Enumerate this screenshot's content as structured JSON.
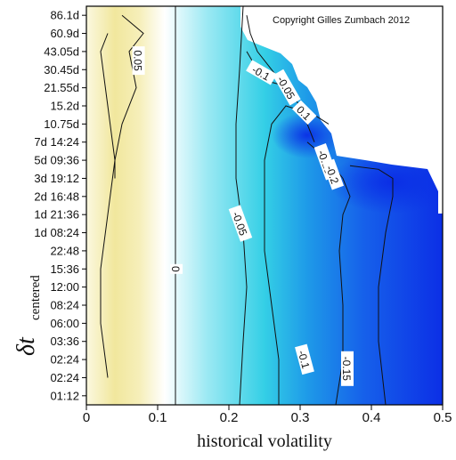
{
  "chart_data": {
    "type": "heatmap",
    "title": "",
    "copyright": "Copyright Gilles Zumbach 2012",
    "xlabel": "historical volatility",
    "ylabel_main": "δt",
    "ylabel_sub": "centered",
    "xlim": [
      0,
      0.5
    ],
    "x_ticks": [
      "0",
      "0.1",
      "0.2",
      "0.3",
      "0.4",
      "0.5"
    ],
    "y_ticks": [
      "86.1d",
      "60.9d",
      "43.05d",
      "30.45d",
      "21.55d",
      "15.2d",
      "10.75d",
      "7d 14:24",
      "5d 09:36",
      "3d 19:12",
      "2d 16:48",
      "1d 21:36",
      "1d 08:24",
      "22:48",
      "15:36",
      "12:00",
      "08:24",
      "06:00",
      "03:36",
      "02:24",
      "02:24",
      "01:12"
    ],
    "colormap": {
      "low": "#e9d66a",
      "zero": "#ffffff",
      "mid": "#20c8e0",
      "high": "#0a2ce6"
    },
    "contours": [
      {
        "level": "-0.05",
        "label": "-0.05",
        "points": [
          [
            0.03,
            1
          ],
          [
            0.02,
            2
          ],
          [
            0.03,
            5
          ],
          [
            0.04,
            8
          ],
          [
            0.03,
            11
          ],
          [
            0.02,
            14
          ],
          [
            0.02,
            17
          ],
          [
            0.03,
            20
          ]
        ]
      },
      {
        "level": "0.05",
        "label": "0.05",
        "points": [
          [
            0.05,
            0
          ],
          [
            0.08,
            1
          ],
          [
            0.06,
            2
          ],
          [
            0.07,
            4
          ],
          [
            0.05,
            6
          ],
          [
            0.04,
            8
          ],
          [
            0.04,
            9
          ]
        ]
      },
      {
        "level": "0",
        "label": "0",
        "points": [
          [
            0.125,
            -0.5
          ],
          [
            0.125,
            5
          ],
          [
            0.125,
            10
          ],
          [
            0.125,
            15
          ],
          [
            0.125,
            21.5
          ]
        ]
      },
      {
        "level": "-0.05",
        "label": "-0.05",
        "points": [
          [
            0.22,
            -0.5
          ],
          [
            0.215,
            3
          ],
          [
            0.21,
            6
          ],
          [
            0.21,
            9
          ],
          [
            0.22,
            12
          ],
          [
            0.225,
            15
          ],
          [
            0.22,
            18
          ],
          [
            0.215,
            21.5
          ]
        ]
      },
      {
        "level": "-0.05",
        "label": "-0.05",
        "points": [
          [
            0.225,
            0
          ],
          [
            0.23,
            1
          ],
          [
            0.24,
            2
          ],
          [
            0.26,
            3
          ],
          [
            0.28,
            4
          ],
          [
            0.3,
            5
          ],
          [
            0.31,
            6
          ],
          [
            0.32,
            7
          ]
        ]
      },
      {
        "level": "-0.1",
        "label": "-0.1",
        "points": [
          [
            0.27,
            21.5
          ],
          [
            0.27,
            19
          ],
          [
            0.26,
            16
          ],
          [
            0.25,
            13
          ],
          [
            0.25,
            10
          ],
          [
            0.25,
            8
          ],
          [
            0.26,
            6
          ],
          [
            0.28,
            5
          ],
          [
            0.32,
            5.5
          ],
          [
            0.34,
            6
          ]
        ]
      },
      {
        "level": "-0.1",
        "label": "-0.1",
        "points": [
          [
            0.225,
            2
          ],
          [
            0.24,
            3
          ],
          [
            0.26,
            3.7
          ],
          [
            0.29,
            4
          ]
        ]
      },
      {
        "level": "-0.15",
        "label": "-0.15",
        "points": [
          [
            0.35,
            21.5
          ],
          [
            0.36,
            19
          ],
          [
            0.36,
            16
          ],
          [
            0.355,
            13
          ],
          [
            0.36,
            11
          ],
          [
            0.37,
            10
          ],
          [
            0.36,
            9
          ],
          [
            0.34,
            8
          ],
          [
            0.31,
            7
          ]
        ]
      },
      {
        "level": "-0.2",
        "label": "-0.2",
        "points": [
          [
            0.42,
            21.5
          ],
          [
            0.41,
            18
          ],
          [
            0.41,
            15
          ],
          [
            0.42,
            12
          ],
          [
            0.43,
            10
          ],
          [
            0.43,
            9
          ],
          [
            0.41,
            8.5
          ],
          [
            0.37,
            8.3
          ]
        ]
      }
    ],
    "contour_labels": [
      {
        "text": "0.05",
        "x": 0.072,
        "y": 2.5,
        "rotate": 90
      },
      {
        "text": "-0.1",
        "x": 0.245,
        "y": 3.2,
        "rotate": 30
      },
      {
        "text": "-0.05",
        "x": 0.28,
        "y": 4.0,
        "rotate": 60
      },
      {
        "text": "0.1",
        "x": 0.305,
        "y": 5.4,
        "rotate": 45
      },
      {
        "text": "0",
        "x": 0.125,
        "y": 14.0,
        "rotate": 90
      },
      {
        "text": "-0.05",
        "x": 0.215,
        "y": 11.5,
        "rotate": 70
      },
      {
        "text": "-0.15",
        "x": 0.335,
        "y": 8.1,
        "rotate": 70
      },
      {
        "text": "-0.2",
        "x": 0.345,
        "y": 8.8,
        "rotate": 70
      },
      {
        "text": "-0.1",
        "x": 0.305,
        "y": 19.0,
        "rotate": 75
      },
      {
        "text": "-0.15",
        "x": 0.365,
        "y": 19.5,
        "rotate": 90
      }
    ],
    "region_blank": "top-right (no data)"
  }
}
